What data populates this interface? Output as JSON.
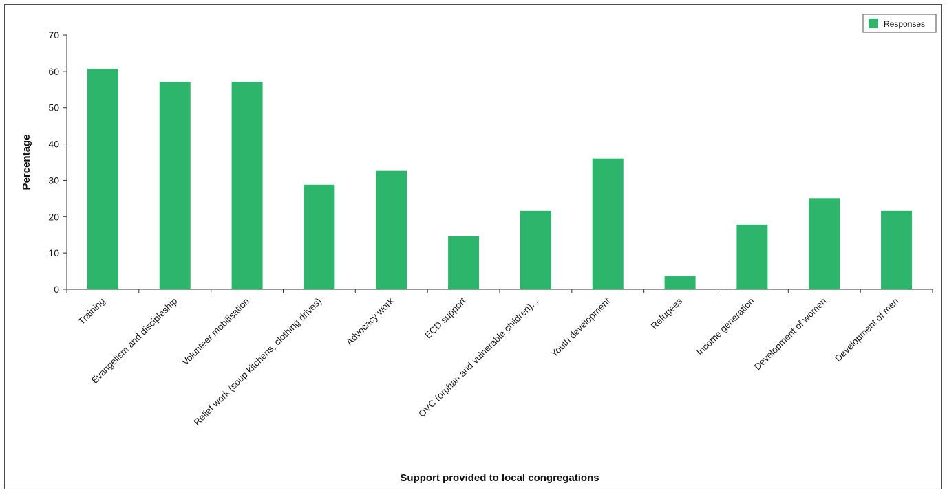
{
  "chart_data": {
    "type": "bar",
    "title": "",
    "xlabel": "Support provided to local congregations",
    "ylabel": "Percentage",
    "ylim": [
      0,
      70
    ],
    "yticks": [
      0,
      10,
      20,
      30,
      40,
      50,
      60,
      70
    ],
    "grid": false,
    "legend": "top-right",
    "categories": [
      "Training",
      "Evangelism and discipleship",
      "Volunteer mobilisation",
      "Relief work (soup kitchens, clothing drives)",
      "Advocacy work",
      "ECD support",
      "OVC (orphan and vulnerable children)...",
      "Youth development",
      "Refugees",
      "Income generation",
      "Development of women",
      "Development of men"
    ],
    "series": [
      {
        "name": "Responses",
        "color": "#2db56c",
        "values": [
          60.7,
          57.1,
          57.1,
          28.8,
          32.6,
          14.6,
          21.6,
          36.0,
          3.7,
          17.8,
          25.1,
          21.6
        ]
      }
    ]
  }
}
